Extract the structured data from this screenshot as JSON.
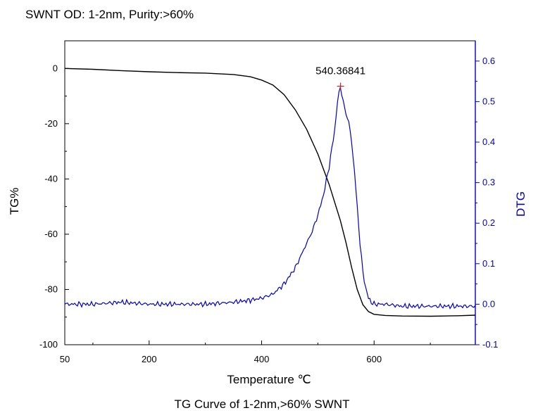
{
  "chart_data": {
    "type": "line",
    "subtitle": "SWNT OD: 1-2nm, Purity:>60%",
    "title": "TG Curve of 1-2nm,>60% SWNT",
    "xlabel": "Temperature  ℃",
    "ylabel_left": "TG%",
    "ylabel_right": "DTG",
    "xlim": [
      50,
      780
    ],
    "ylim_left": [
      -100,
      10
    ],
    "ylim_right": [
      -0.1,
      0.65
    ],
    "x_ticks": [
      50,
      200,
      400,
      600
    ],
    "x_tick_labels": [
      "50",
      "200",
      "400",
      "600"
    ],
    "y_left_ticks": [
      0,
      -20,
      -40,
      -60,
      -80,
      -100
    ],
    "y_left_tick_labels": [
      "0",
      "-20",
      "-40",
      "-60",
      "-80",
      "-100"
    ],
    "y_right_ticks": [
      0.6,
      0.5,
      0.4,
      0.3,
      0.2,
      0.1,
      0.0,
      -0.1
    ],
    "y_right_tick_labels": [
      "0.6",
      "0.5",
      "0.4",
      "0.3",
      "0.2",
      "0.1",
      "0.0",
      "-0.1"
    ],
    "grid": false,
    "peak_annotation": {
      "x": 540.36841,
      "y": 0.538,
      "label": "540.36841"
    },
    "series": [
      {
        "name": "TG",
        "axis": "left",
        "color": "#000000",
        "x": [
          50,
          100,
          150,
          200,
          250,
          300,
          350,
          380,
          400,
          420,
          440,
          460,
          480,
          500,
          520,
          540,
          550,
          560,
          570,
          580,
          590,
          600,
          620,
          650,
          700,
          750,
          780
        ],
        "y": [
          0,
          -0.3,
          -0.8,
          -1.2,
          -1.5,
          -1.7,
          -2.2,
          -3.0,
          -4.2,
          -6.0,
          -9.5,
          -15.0,
          -22.0,
          -31.0,
          -42.0,
          -55.0,
          -63.0,
          -72.0,
          -80.0,
          -85.5,
          -88.0,
          -89.0,
          -89.4,
          -89.6,
          -89.7,
          -89.5,
          -89.3
        ]
      },
      {
        "name": "DTG",
        "axis": "right",
        "color": "#0000cc",
        "x": [
          50,
          100,
          150,
          200,
          250,
          300,
          350,
          380,
          400,
          420,
          440,
          460,
          470,
          480,
          490,
          500,
          510,
          520,
          530,
          535,
          540,
          545,
          550,
          555,
          560,
          565,
          570,
          575,
          580,
          585,
          590,
          595,
          600,
          620,
          650,
          700,
          750,
          780
        ],
        "y": [
          0.0,
          0.0,
          0.005,
          0.0,
          0.0,
          0.0,
          0.005,
          0.01,
          0.015,
          0.025,
          0.05,
          0.09,
          0.12,
          0.15,
          0.18,
          0.22,
          0.27,
          0.34,
          0.43,
          0.5,
          0.538,
          0.5,
          0.47,
          0.45,
          0.4,
          0.33,
          0.24,
          0.15,
          0.08,
          0.04,
          0.015,
          0.005,
          0.0,
          0.0,
          -0.005,
          -0.005,
          -0.005,
          -0.005
        ]
      }
    ]
  }
}
